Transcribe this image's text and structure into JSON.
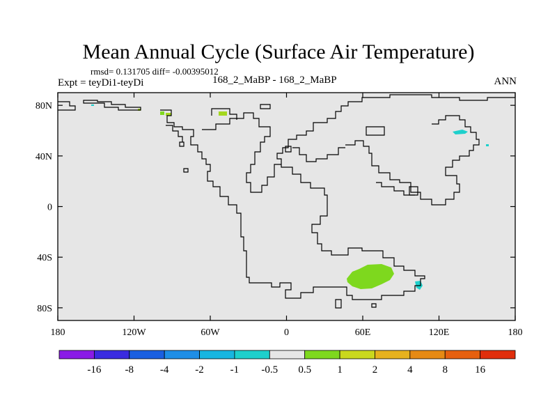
{
  "title": "Mean Annual Cycle (Surface Air Temperature)",
  "stats_line": "rmsd= 0.131705 diff= -0.00395012",
  "experiment_label": "Expt = teyDi1-teyDi",
  "center_label": "168_2_MaBP - 168_2_MaBP",
  "season": "ANN",
  "y_ticks": [
    {
      "value": 80,
      "label": "80N"
    },
    {
      "value": 40,
      "label": "40N"
    },
    {
      "value": 0,
      "label": "0"
    },
    {
      "value": -40,
      "label": "40S"
    },
    {
      "value": -80,
      "label": "80S"
    }
  ],
  "x_ticks": [
    {
      "value": -180,
      "label": "180"
    },
    {
      "value": -120,
      "label": "120W"
    },
    {
      "value": -60,
      "label": "60W"
    },
    {
      "value": 0,
      "label": "0"
    },
    {
      "value": 60,
      "label": "60E"
    },
    {
      "value": 120,
      "label": "120E"
    },
    {
      "value": 180,
      "label": "180"
    }
  ],
  "colorbar": {
    "colors": [
      "#8a1be6",
      "#3a2be0",
      "#1a5fe0",
      "#1e8ee6",
      "#18b6e0",
      "#1ed0cc",
      "#e6e6e6",
      "#7ed81e",
      "#cad81e",
      "#e6b21e",
      "#e68a14",
      "#e6600f",
      "#e02e0c"
    ],
    "labels": [
      "-16",
      "-8",
      "-4",
      "-2",
      "-1",
      "-0.5",
      "0.5",
      "1",
      "2",
      "4",
      "8",
      "16"
    ]
  },
  "colors": {
    "background_field": "#e6e6e6",
    "positive_anomaly": "#7ed81e",
    "weak_positive": "#a4d81e",
    "negative_anomaly": "#1ed0cc"
  }
}
